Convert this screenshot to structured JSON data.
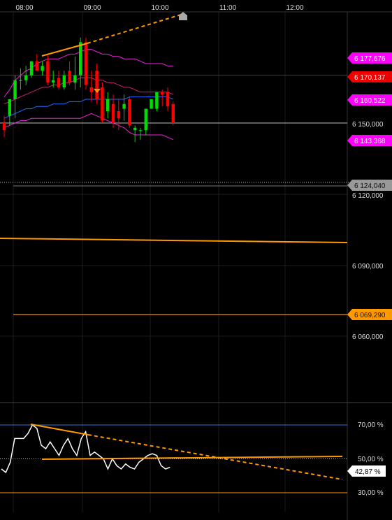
{
  "time_axis": {
    "labels": [
      "08:00",
      "09:00",
      "10:00",
      "11:00",
      "12:00"
    ]
  },
  "price_axis": {
    "ticks": [
      "6 150,000",
      "6 120,000",
      "6 090,000",
      "6 060,000"
    ]
  },
  "price_tags": [
    {
      "label": "6 177,676",
      "color": "#ff00ff"
    },
    {
      "label": "6 170,137",
      "color": "#ee0000"
    },
    {
      "label": "6 160,522",
      "color": "#ff00ff"
    },
    {
      "label": "6 143,368",
      "color": "#ff00ff"
    },
    {
      "label": "6 124,040",
      "color": "#999999"
    },
    {
      "label": "6 069,290",
      "color": "#ff9900"
    }
  ],
  "osc_axis": {
    "ticks": [
      "70,00 %",
      "50,00 %",
      "30,00 %"
    ],
    "current_tag": "42,87 %"
  },
  "chart_data": {
    "type": "candlestick",
    "price_ylim": [
      6042,
      6182
    ],
    "candles": [
      {
        "o": 6150,
        "h": 6153,
        "l": 6144,
        "c": 6147
      },
      {
        "o": 6153,
        "h": 6160,
        "l": 6149,
        "c": 6160
      },
      {
        "o": 6160,
        "h": 6170,
        "l": 6152,
        "c": 6168
      },
      {
        "o": 6168,
        "h": 6173,
        "l": 6164,
        "c": 6168
      },
      {
        "o": 6168,
        "h": 6174,
        "l": 6166,
        "c": 6170
      },
      {
        "o": 6170,
        "h": 6176,
        "l": 6169,
        "c": 6176
      },
      {
        "o": 6176,
        "h": 6179,
        "l": 6172,
        "c": 6172
      },
      {
        "o": 6172,
        "h": 6176,
        "l": 6170,
        "c": 6174
      },
      {
        "o": 6176,
        "h": 6179,
        "l": 6166,
        "c": 6167
      },
      {
        "o": 6167,
        "h": 6172,
        "l": 6165,
        "c": 6168
      },
      {
        "o": 6169,
        "h": 6172,
        "l": 6164,
        "c": 6165
      },
      {
        "o": 6165,
        "h": 6172,
        "l": 6164,
        "c": 6170
      },
      {
        "o": 6172,
        "h": 6176,
        "l": 6166,
        "c": 6167
      },
      {
        "o": 6167,
        "h": 6178,
        "l": 6164,
        "c": 6170
      },
      {
        "o": 6170,
        "h": 6186,
        "l": 6165,
        "c": 6184
      },
      {
        "o": 6184,
        "h": 6186,
        "l": 6164,
        "c": 6166
      },
      {
        "o": 6165,
        "h": 6172,
        "l": 6159,
        "c": 6163
      },
      {
        "o": 6172,
        "h": 6175,
        "l": 6158,
        "c": 6160
      },
      {
        "o": 6165,
        "h": 6167,
        "l": 6150,
        "c": 6151
      },
      {
        "o": 6155,
        "h": 6163,
        "l": 6152,
        "c": 6160
      },
      {
        "o": 6158,
        "h": 6162,
        "l": 6148,
        "c": 6150
      },
      {
        "o": 6155,
        "h": 6160,
        "l": 6147,
        "c": 6152
      },
      {
        "o": 6156,
        "h": 6162,
        "l": 6151,
        "c": 6158
      },
      {
        "o": 6160,
        "h": 6161,
        "l": 6148,
        "c": 6149
      },
      {
        "o": 6147,
        "h": 6149,
        "l": 6142,
        "c": 6148
      },
      {
        "o": 6147,
        "h": 6148,
        "l": 6143,
        "c": 6147
      },
      {
        "o": 6147,
        "h": 6156,
        "l": 6145,
        "c": 6156
      },
      {
        "o": 6156,
        "h": 6160,
        "l": 6156,
        "c": 6160
      },
      {
        "o": 6156,
        "h": 6163,
        "l": 6155,
        "c": 6163
      },
      {
        "o": 6163,
        "h": 6164,
        "l": 6157,
        "c": 6162
      },
      {
        "o": 6163,
        "h": 6165,
        "l": 6155,
        "c": 6157
      },
      {
        "o": 6158,
        "h": 6159,
        "l": 6149,
        "c": 6150
      }
    ],
    "bollinger": {
      "upper": [
        6161,
        6164,
        6168,
        6170,
        6172,
        6173,
        6175,
        6176,
        6177,
        6177,
        6177,
        6178,
        6179,
        6179,
        6180,
        6181,
        6181,
        6180,
        6179,
        6179,
        6178,
        6178,
        6177,
        6177,
        6177,
        6176,
        6175,
        6175,
        6175,
        6175,
        6174,
        6174
      ],
      "middle": [
        6158,
        6159,
        6160,
        6161,
        6162,
        6163,
        6164,
        6165,
        6165,
        6166,
        6166,
        6167,
        6167,
        6168,
        6169,
        6169,
        6169,
        6168,
        6168,
        6167,
        6167,
        6166,
        6165,
        6165,
        6164,
        6163,
        6163,
        6163,
        6163,
        6163,
        6163,
        6162
      ],
      "lower": [
        6148,
        6149,
        6150,
        6151,
        6151,
        6152,
        6152,
        6152,
        6152,
        6152,
        6152,
        6152,
        6152,
        6152,
        6152,
        6153,
        6154,
        6153,
        6152,
        6151,
        6150,
        6149,
        6148,
        6146,
        6145,
        6145,
        6145,
        6145,
        6145,
        6145,
        6144,
        6143
      ]
    },
    "moving_average": [
      6152,
      6153,
      6154,
      6155,
      6156,
      6156,
      6157,
      6157,
      6157,
      6158,
      6158,
      6158,
      6159,
      6159,
      6159,
      6160,
      6160,
      6160,
      6160,
      6160,
      6160,
      6160,
      6160,
      6161,
      6161,
      6161,
      6161,
      6161,
      6161,
      6161,
      6161,
      6160
    ],
    "oscillator": {
      "ylim": [
        22,
        82
      ],
      "values": [
        44,
        42,
        48,
        62,
        62,
        62,
        65,
        70,
        68,
        58,
        56,
        60,
        56,
        52,
        58,
        62,
        56,
        52,
        62,
        66,
        52,
        54,
        52,
        50,
        44,
        50,
        46,
        44,
        47,
        45,
        44,
        48,
        50,
        52,
        53,
        52,
        46,
        44,
        45
      ],
      "levels": [
        70,
        50,
        30
      ]
    }
  }
}
